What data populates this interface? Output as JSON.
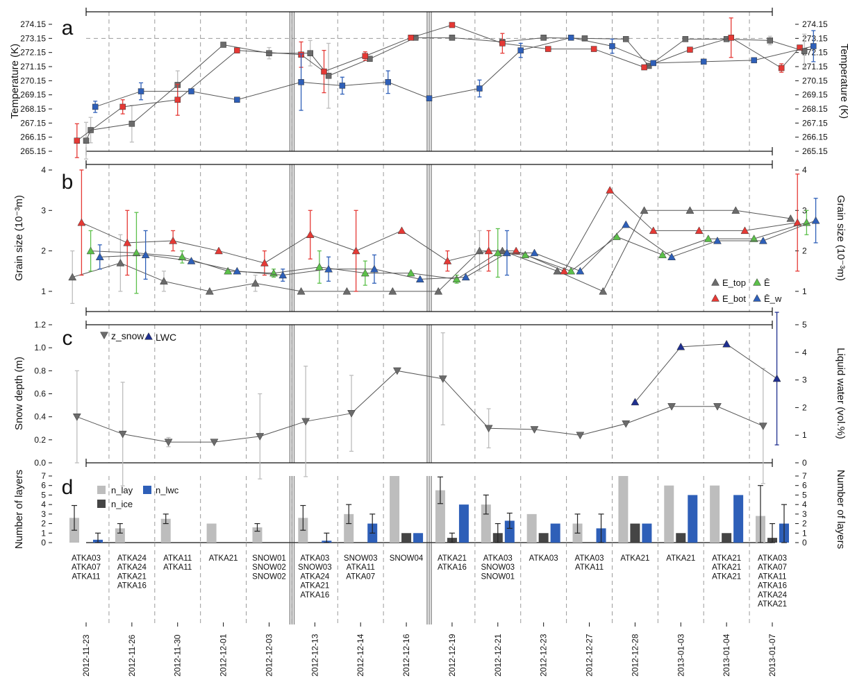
{
  "dates": [
    "2012-11-23",
    "2012-11-26",
    "2012-11-30",
    "2012-12-01",
    "2012-12-03",
    "2012-12-13",
    "2012-12-14",
    "2012-12-16",
    "2012-12-19",
    "2012-12-21",
    "2012-12-23",
    "2012-12-27",
    "2012-12-28",
    "2013-01-03",
    "2013-01-04",
    "2013-01-07"
  ],
  "probes": [
    [
      "ATKA03",
      "ATKA07",
      "ATKA11"
    ],
    [
      "ATKA24",
      "ATKA24",
      "ATKA21",
      "ATKA16"
    ],
    [
      "ATKA11",
      "ATKA11"
    ],
    [
      "ATKA21"
    ],
    [
      "SNOW01",
      "SNOW02",
      "SNOW02"
    ],
    [
      "ATKA03",
      "SNOW03",
      "ATKA24",
      "ATKA21",
      "ATKA16"
    ],
    [
      "SNOW03",
      "ATKA11",
      "ATKA07"
    ],
    [
      "SNOW04"
    ],
    [
      "ATKA21",
      "ATKA16"
    ],
    [
      "ATKA03",
      "SNOW03",
      "SNOW01"
    ],
    [
      "ATKA03"
    ],
    [
      "ATKA03",
      "ATKA11"
    ],
    [
      "ATKA21"
    ],
    [
      "ATKA21"
    ],
    [
      "ATKA21",
      "ATKA21",
      "ATKA21"
    ],
    [
      "ATKA03",
      "ATKA07",
      "ATKA11",
      "ATKA16",
      "ATKA24",
      "ATKA21"
    ]
  ],
  "colors": {
    "grey": "#6b6b6b",
    "light_grey": "#bdbdbd",
    "dark": "#454545",
    "red": "#e53935",
    "green": "#5cc04a",
    "blue": "#2e5fb8",
    "navy": "#1f2f8f",
    "grid": "#9a9a9a"
  },
  "chart_data": [
    {
      "panel": "a",
      "type": "line",
      "ylabel": "Temperature (K)",
      "ylim": [
        265.15,
        274.15
      ],
      "yticks": [
        "265.15",
        "266.15",
        "267.15",
        "268.15",
        "269.15",
        "270.15",
        "271.15",
        "272.15",
        "273.15",
        "274.15"
      ],
      "reference_line": 273.15,
      "series": [
        {
          "marker": "square",
          "color": "grey",
          "x": [
            0,
            0.1,
            1,
            2,
            3,
            4,
            4.9,
            5.3,
            6.2,
            7.2,
            8,
            9.1,
            10,
            10.9,
            11.8,
            12.3,
            13.1,
            14,
            14.95,
            15.7
          ],
          "y": [
            265.9,
            266.65,
            267.1,
            269.85,
            272.7,
            272.1,
            272.1,
            270.5,
            271.7,
            273.2,
            273.2,
            272.9,
            273.2,
            273.15,
            273.1,
            271.2,
            273.1,
            273.1,
            273.0,
            272.25
          ],
          "err": [
            1.3,
            0.9,
            1.3,
            1.0,
            0,
            0.4,
            0.9,
            2.3,
            0,
            0,
            0,
            0,
            0,
            0,
            0,
            0,
            0,
            0,
            0.3,
            1.2
          ]
        },
        {
          "marker": "square",
          "color": "red",
          "x": [
            -0.2,
            0.8,
            2,
            3.3,
            4.7,
            5.2,
            6.1,
            7.1,
            8,
            9.1,
            10.1,
            11.1,
            12.2,
            13.2,
            14.1,
            15.2,
            15.6
          ],
          "y": [
            265.9,
            268.3,
            268.8,
            272.3,
            272.0,
            270.8,
            271.9,
            273.2,
            274.1,
            272.8,
            272.4,
            272.4,
            271.1,
            272.35,
            273.2,
            271.05,
            272.5
          ],
          "err": [
            1.2,
            0.5,
            1.1,
            0,
            0.9,
            1.5,
            0.3,
            0,
            0,
            0.7,
            0,
            0,
            0,
            0,
            1.4,
            0.3,
            0
          ]
        },
        {
          "marker": "square",
          "color": "blue",
          "x": [
            0.2,
            1.2,
            2.3,
            3.3,
            4.7,
            5.6,
            6.6,
            7.5,
            8.6,
            9.5,
            10.6,
            11.5,
            12.4,
            13.5,
            14.6,
            15.9
          ],
          "y": [
            268.3,
            269.4,
            269.4,
            268.8,
            270.05,
            269.8,
            270.05,
            268.9,
            269.6,
            272.3,
            273.2,
            272.6,
            271.4,
            271.5,
            271.6,
            272.6
          ],
          "err": [
            0.4,
            0.6,
            0,
            0,
            2.0,
            0.6,
            0.8,
            0,
            0.6,
            0.5,
            0,
            0.5,
            0,
            0,
            0,
            1.1
          ]
        }
      ]
    },
    {
      "panel": "b",
      "type": "line",
      "ylabel": "Grain size (10⁻³m)",
      "ylim": [
        0.5,
        4
      ],
      "yticks": [
        "1",
        "2",
        "3",
        "4"
      ],
      "legend": [
        "E_top",
        "E_bot",
        "Ē",
        "Ē_w"
      ],
      "series": [
        {
          "name": "E_top",
          "marker": "triangle-up",
          "color": "grey",
          "x": [
            -0.3,
            0.75,
            1.7,
            2.7,
            3.7,
            4.7,
            5.7,
            6.7,
            7.7,
            8.6,
            9.1,
            10.3,
            11.3,
            12.2,
            13.2,
            14.2,
            15.4
          ],
          "y": [
            1.35,
            1.7,
            1.25,
            1.0,
            1.2,
            1.0,
            1.0,
            1.0,
            1.0,
            2.0,
            2.0,
            1.5,
            1.0,
            3.0,
            3.0,
            3.0,
            2.8
          ],
          "err": [
            0.65,
            0.7,
            0.25,
            0,
            0.2,
            0,
            0,
            0,
            0,
            0.5,
            0,
            0,
            0,
            0,
            0,
            0,
            0
          ]
        },
        {
          "name": "E_bot",
          "marker": "triangle-up",
          "color": "red",
          "x": [
            -0.1,
            0.9,
            1.9,
            2.9,
            3.9,
            4.9,
            5.9,
            6.9,
            7.9,
            8.8,
            9.4,
            10.45,
            11.45,
            12.4,
            13.4,
            14.4,
            15.55
          ],
          "y": [
            2.7,
            2.2,
            2.25,
            2.0,
            1.7,
            2.4,
            2.0,
            2.5,
            1.75,
            2.0,
            2.0,
            1.5,
            3.5,
            2.5,
            2.5,
            2.5,
            2.7
          ],
          "err": [
            1.3,
            0.8,
            0.25,
            0,
            0.3,
            0.6,
            1.0,
            0,
            0.25,
            0.5,
            0,
            0,
            0,
            0,
            0,
            0,
            1.2
          ]
        },
        {
          "name": "Ē",
          "marker": "triangle-up",
          "color": "green",
          "x": [
            0.1,
            1.1,
            2.1,
            3.1,
            4.1,
            5.1,
            6.1,
            7.1,
            8.1,
            9.0,
            9.6,
            10.6,
            11.6,
            12.6,
            13.6,
            14.6,
            15.75
          ],
          "y": [
            2.0,
            1.95,
            1.85,
            1.5,
            1.45,
            1.6,
            1.45,
            1.45,
            1.3,
            1.95,
            1.9,
            1.5,
            2.35,
            1.9,
            2.3,
            2.3,
            2.7
          ],
          "err": [
            0.5,
            1.0,
            0.15,
            0,
            0.1,
            0.4,
            0.3,
            0,
            0.1,
            0.6,
            0,
            0,
            0,
            0,
            0,
            0,
            0.3
          ]
        },
        {
          "name": "Ē_w",
          "marker": "triangle-up",
          "color": "blue",
          "x": [
            0.3,
            1.3,
            2.3,
            3.3,
            4.3,
            5.3,
            6.3,
            7.3,
            8.3,
            9.2,
            9.8,
            10.8,
            11.8,
            12.8,
            13.8,
            14.8,
            15.95
          ],
          "y": [
            1.85,
            1.9,
            1.75,
            1.5,
            1.4,
            1.55,
            1.55,
            1.3,
            1.35,
            1.95,
            1.95,
            1.5,
            2.65,
            1.85,
            2.25,
            2.25,
            2.75
          ],
          "err": [
            0.3,
            0.6,
            0,
            0,
            0.15,
            0.3,
            0.35,
            0,
            0,
            0.55,
            0,
            0,
            0,
            0,
            0,
            0,
            0.55
          ]
        }
      ]
    },
    {
      "panel": "c",
      "type": "line",
      "ylabel": "Snow depth (m)",
      "y2label": "Liquid water (vol.%)",
      "ylim": [
        0,
        1.2
      ],
      "y2lim": [
        0,
        5
      ],
      "yticks": [
        "0.0",
        "0.2",
        "0.4",
        "0.6",
        "0.8",
        "1.0",
        "1.2"
      ],
      "y2ticks": [
        "0",
        "1",
        "2",
        "3",
        "4",
        "5"
      ],
      "legend": [
        "z_snow",
        "LWC"
      ],
      "series": [
        {
          "name": "z_snow",
          "marker": "triangle-down",
          "color": "grey",
          "x": [
            -0.2,
            0.8,
            1.8,
            2.8,
            3.8,
            4.8,
            5.8,
            6.8,
            7.8,
            8.8,
            9.8,
            10.8,
            11.8,
            12.8,
            13.8,
            14.8
          ],
          "y": [
            0.4,
            0.25,
            0.18,
            0.18,
            0.23,
            0.36,
            0.43,
            0.8,
            0.73,
            0.3,
            0.29,
            0.24,
            0.34,
            0.49,
            0.49,
            0.32
          ],
          "err": [
            0.4,
            0.45,
            0.04,
            0,
            0.37,
            0.48,
            0.33,
            0,
            0.4,
            0.17,
            0,
            0,
            0,
            0,
            0,
            0.5
          ]
        },
        {
          "name": "LWC",
          "marker": "triangle-up",
          "color": "navy",
          "axis": "right",
          "x": [
            12,
            13,
            14,
            15.1
          ],
          "y": [
            2.2,
            4.2,
            4.3,
            3.05
          ],
          "err": [
            0,
            0,
            0,
            2.4
          ]
        }
      ]
    },
    {
      "panel": "d",
      "type": "bar",
      "ylabel": "Number of layers",
      "y2label": "Number of layers",
      "ylim": [
        0,
        7
      ],
      "yticks": [
        "0",
        "1",
        "2",
        "3",
        "4",
        "5",
        "6",
        "7"
      ],
      "legend": [
        "n_lay",
        "n_ice",
        "n_lwc"
      ],
      "series": [
        {
          "name": "n_lay",
          "color": "light_grey",
          "values": [
            2.6,
            1.5,
            2.5,
            2,
            1.6,
            2.6,
            3,
            7,
            5.5,
            4,
            3,
            2,
            7,
            6,
            6,
            2.8
          ],
          "err": [
            1.3,
            0.5,
            0.5,
            0,
            0.4,
            1.3,
            1,
            0,
            1.4,
            1,
            0,
            1,
            0,
            0,
            0,
            3.2
          ]
        },
        {
          "name": "n_ice",
          "color": "dark",
          "values": [
            0,
            0,
            0,
            0,
            0,
            0,
            0,
            1,
            0.5,
            1,
            1,
            0,
            2,
            1,
            1,
            0.5
          ],
          "err": [
            0,
            0,
            0,
            0,
            0,
            0,
            0,
            0,
            0.5,
            1,
            0,
            0,
            0,
            0,
            0,
            1.5
          ]
        },
        {
          "name": "n_lwc",
          "color": "blue",
          "values": [
            0.3,
            0,
            0,
            0,
            0,
            0.2,
            2,
            1,
            4,
            2.3,
            2,
            1.5,
            2,
            5,
            5,
            2
          ],
          "err": [
            0.7,
            0,
            0,
            0,
            0,
            0.8,
            1,
            0,
            0,
            0.8,
            0,
            1.5,
            0,
            0,
            0,
            2
          ]
        }
      ]
    }
  ]
}
